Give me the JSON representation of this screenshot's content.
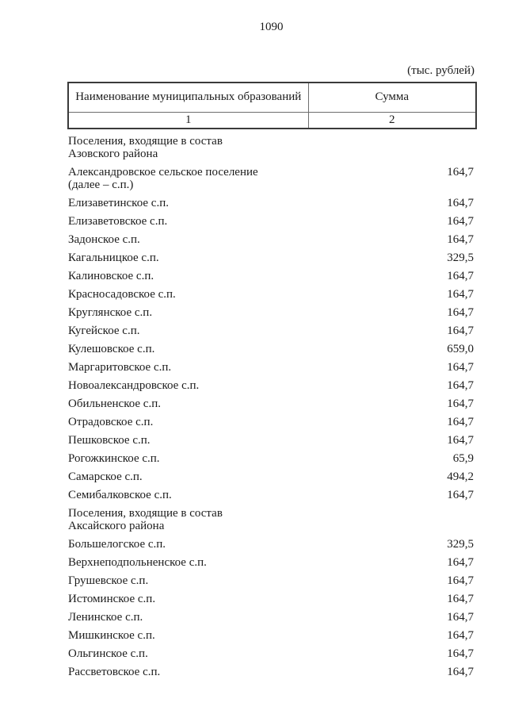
{
  "page": {
    "number": "1090",
    "unit_note": "(тыс. рублей)"
  },
  "table": {
    "header": {
      "col1": "Наименование муниципальных образований",
      "col2": "Сумма",
      "col1_index": "1",
      "col2_index": "2"
    },
    "rows": [
      {
        "name": "Поселения, входящие в состав\nАзовского района",
        "value": "",
        "section": true
      },
      {
        "name": "Александровское сельское поселение\n(далее – с.п.)",
        "value": "164,7"
      },
      {
        "name": "Елизаветинское с.п.",
        "value": "164,7"
      },
      {
        "name": "Елизаветовское с.п.",
        "value": "164,7"
      },
      {
        "name": "Задонское с.п.",
        "value": "164,7"
      },
      {
        "name": "Кагальницкое с.п.",
        "value": "329,5"
      },
      {
        "name": "Калиновское с.п.",
        "value": "164,7"
      },
      {
        "name": "Красносадовское с.п.",
        "value": "164,7"
      },
      {
        "name": "Круглянское с.п.",
        "value": "164,7"
      },
      {
        "name": "Кугейское с.п.",
        "value": "164,7"
      },
      {
        "name": "Кулешовское с.п.",
        "value": "659,0"
      },
      {
        "name": "Маргаритовское с.п.",
        "value": "164,7"
      },
      {
        "name": "Новоалександровское с.п.",
        "value": "164,7"
      },
      {
        "name": "Обильненское с.п.",
        "value": "164,7"
      },
      {
        "name": "Отрадовское с.п.",
        "value": "164,7"
      },
      {
        "name": "Пешковское с.п.",
        "value": "164,7"
      },
      {
        "name": "Рогожкинское с.п.",
        "value": "65,9"
      },
      {
        "name": "Самарское с.п.",
        "value": "494,2"
      },
      {
        "name": "Семибалковское с.п.",
        "value": "164,7"
      },
      {
        "name": "Поселения, входящие в состав\nАксайского района",
        "value": "",
        "section": true
      },
      {
        "name": "Большелогское с.п.",
        "value": "329,5"
      },
      {
        "name": "Верхнеподпольненское с.п.",
        "value": "164,7"
      },
      {
        "name": "Грушевское с.п.",
        "value": "164,7"
      },
      {
        "name": "Истоминское с.п.",
        "value": "164,7"
      },
      {
        "name": "Ленинское с.п.",
        "value": "164,7"
      },
      {
        "name": "Мишкинское с.п.",
        "value": "164,7"
      },
      {
        "name": "Ольгинское с.п.",
        "value": "164,7"
      },
      {
        "name": "Рассветовское с.п.",
        "value": "164,7"
      }
    ]
  },
  "colors": {
    "text": "#1c1c1c",
    "border_dark": "#3a3a3a",
    "border_light": "#6e6e6e",
    "bg": "#ffffff"
  }
}
